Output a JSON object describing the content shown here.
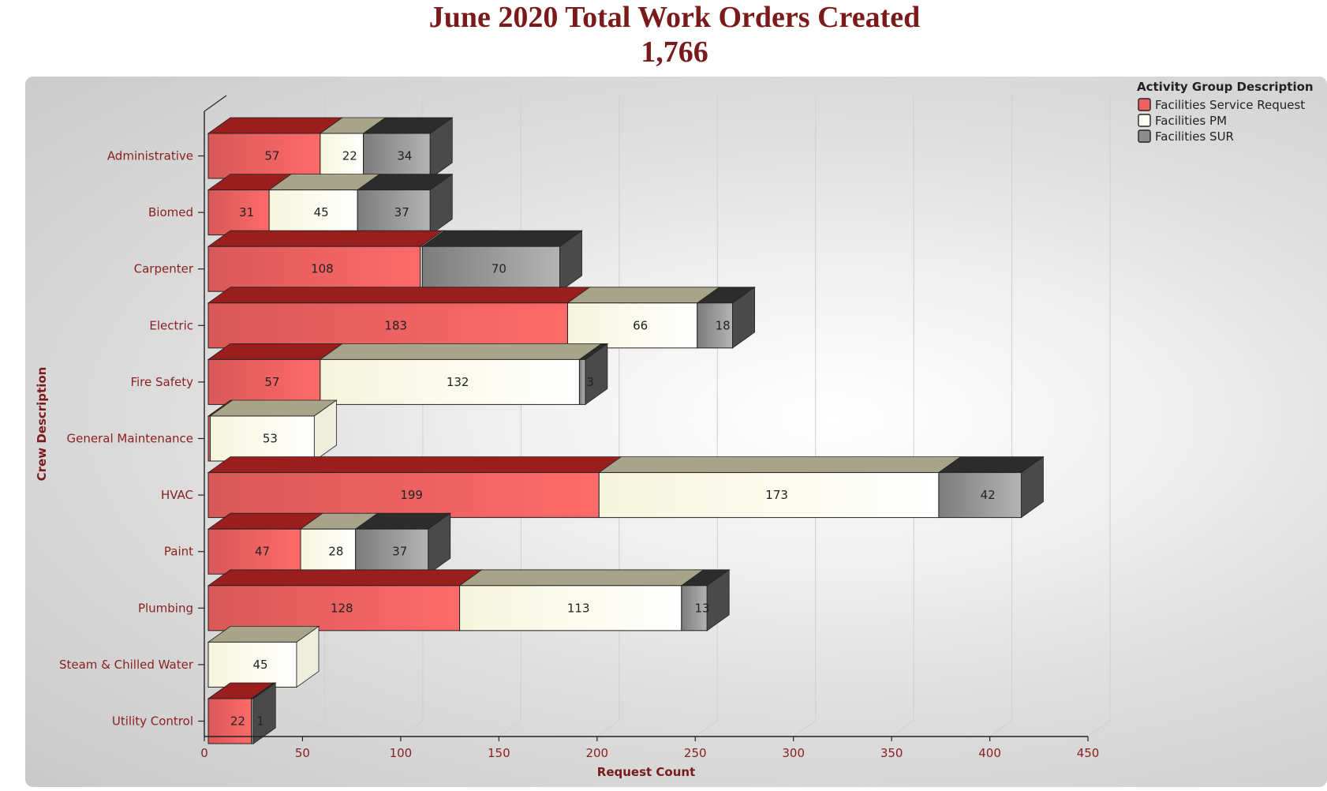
{
  "header": {
    "title": "June 2020 Total Work Orders Created",
    "subtitle": "1,766"
  },
  "chart_data": {
    "type": "bar",
    "orientation": "horizontal",
    "stacked": true,
    "style": "3d",
    "title": "June 2020 Total Work Orders Created",
    "subtitle": "1,766",
    "xlabel": "Request Count",
    "ylabel": "Crew Description",
    "xlim": [
      0,
      450
    ],
    "xticks": [
      0,
      50,
      100,
      150,
      200,
      250,
      300,
      350,
      400,
      450
    ],
    "grid": true,
    "legend_title": "Activity Group Description",
    "legend_position": "top-right",
    "categories": [
      "Administrative",
      "Biomed",
      "Carpenter",
      "Electric",
      "Fire Safety",
      "General Maintenance",
      "HVAC",
      "Paint",
      "Plumbing",
      "Steam & Chilled Water",
      "Utility Control"
    ],
    "series": [
      {
        "name": "Facilities Service Request",
        "color": "#f06060",
        "values": [
          57,
          31,
          108,
          183,
          57,
          1,
          199,
          47,
          128,
          0,
          22
        ]
      },
      {
        "name": "Facilities PM",
        "color": "#fffff0",
        "values": [
          22,
          45,
          1,
          66,
          132,
          53,
          173,
          28,
          113,
          45,
          0
        ]
      },
      {
        "name": "Facilities SUR",
        "color": "#8c8c8c",
        "values": [
          34,
          37,
          70,
          18,
          3,
          0,
          42,
          37,
          13,
          0,
          1
        ]
      }
    ]
  }
}
